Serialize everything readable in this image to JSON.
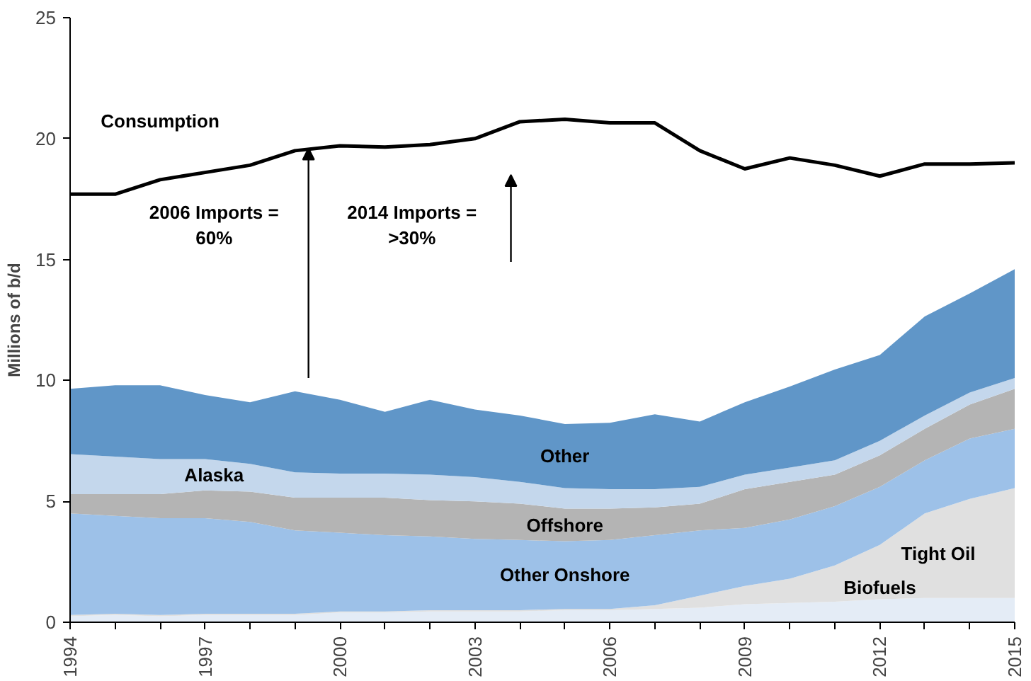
{
  "chart_data": {
    "type": "area",
    "stacked": true,
    "ylabel": "Millions of b/d",
    "x": [
      1994,
      1995,
      1996,
      1997,
      1998,
      1999,
      2000,
      2001,
      2002,
      2003,
      2004,
      2005,
      2006,
      2007,
      2008,
      2009,
      2010,
      2011,
      2012,
      2013,
      2014,
      2015
    ],
    "xlim": [
      1994,
      2015
    ],
    "xticks": [
      1994,
      {
        "value": 1995,
        "label": null
      },
      {
        "value": 1996,
        "label": null
      },
      1997,
      {
        "value": 1998,
        "label": null
      },
      {
        "value": 1999,
        "label": null
      },
      2000,
      {
        "value": 2001,
        "label": null
      },
      {
        "value": 2002,
        "label": null
      },
      2003,
      {
        "value": 2004,
        "label": null
      },
      {
        "value": 2005,
        "label": null
      },
      2006,
      {
        "value": 2007,
        "label": null
      },
      {
        "value": 2008,
        "label": null
      },
      2009,
      {
        "value": 2010,
        "label": null
      },
      {
        "value": 2011,
        "label": null
      },
      2012,
      {
        "value": 2013,
        "label": null
      },
      {
        "value": 2014,
        "label": null
      },
      2015
    ],
    "ylim": [
      0,
      25
    ],
    "yticks": [
      0,
      5,
      10,
      15,
      20,
      25
    ],
    "grid": false,
    "series": [
      {
        "name": "Biofuels",
        "color": "#e4ecf6",
        "values": [
          0.25,
          0.3,
          0.25,
          0.3,
          0.3,
          0.3,
          0.4,
          0.4,
          0.45,
          0.45,
          0.45,
          0.5,
          0.5,
          0.55,
          0.6,
          0.75,
          0.8,
          0.85,
          0.95,
          1.0,
          1.0,
          1.0
        ]
      },
      {
        "name": "Tight Oil",
        "color": "#e0e0e0",
        "values": [
          0.05,
          0.05,
          0.05,
          0.05,
          0.05,
          0.05,
          0.05,
          0.05,
          0.05,
          0.05,
          0.05,
          0.05,
          0.05,
          0.15,
          0.5,
          0.75,
          1.0,
          1.5,
          2.25,
          3.5,
          4.1,
          4.55
        ]
      },
      {
        "name": "Other Onshore",
        "color": "#9dc1e8",
        "values": [
          4.2,
          4.05,
          4.0,
          3.95,
          3.8,
          3.45,
          3.25,
          3.15,
          3.05,
          2.95,
          2.9,
          2.8,
          2.85,
          2.9,
          2.7,
          2.4,
          2.45,
          2.45,
          2.4,
          2.2,
          2.5,
          2.45
        ]
      },
      {
        "name": "Offshore",
        "color": "#b4b4b4",
        "values": [
          0.8,
          0.9,
          1.0,
          1.15,
          1.25,
          1.35,
          1.45,
          1.55,
          1.5,
          1.55,
          1.5,
          1.35,
          1.3,
          1.15,
          1.1,
          1.6,
          1.55,
          1.3,
          1.3,
          1.3,
          1.4,
          1.65
        ]
      },
      {
        "name": "Alaska",
        "color": "#c4d7ec",
        "values": [
          1.65,
          1.55,
          1.45,
          1.3,
          1.15,
          1.05,
          1.0,
          1.0,
          1.05,
          1.0,
          0.9,
          0.85,
          0.8,
          0.75,
          0.7,
          0.6,
          0.6,
          0.6,
          0.6,
          0.55,
          0.5,
          0.45
        ]
      },
      {
        "name": "Other",
        "color": "#6096c8",
        "values": [
          2.7,
          2.95,
          3.05,
          2.65,
          2.55,
          3.35,
          3.05,
          2.55,
          3.1,
          2.8,
          2.75,
          2.65,
          2.75,
          3.1,
          2.7,
          3.0,
          3.35,
          3.75,
          3.55,
          4.1,
          4.1,
          4.5
        ]
      },
      {
        "name": "Consumption",
        "type": "line",
        "color": "#000000",
        "values": [
          17.7,
          17.7,
          18.3,
          18.6,
          18.9,
          19.5,
          19.7,
          19.65,
          19.75,
          20.0,
          20.7,
          20.8,
          20.65,
          20.65,
          19.5,
          18.75,
          19.2,
          18.9,
          18.45,
          18.95,
          18.95,
          19.0
        ]
      }
    ],
    "annotations": [
      "2006 Imports =\n60%",
      "2014 Imports =\n>30%"
    ]
  }
}
